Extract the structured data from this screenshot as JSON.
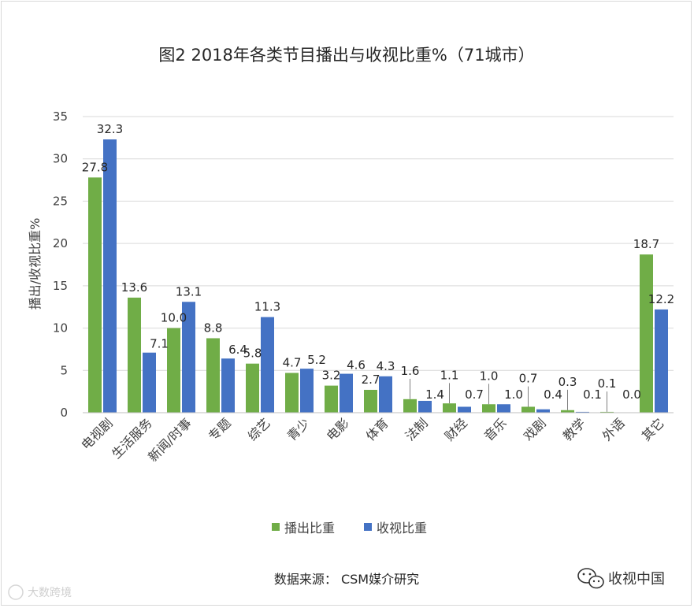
{
  "chart_data": {
    "type": "bar",
    "title": "图2  2018年各类节目播出与收视比重%（71城市）",
    "ylabel": "播出/收视比重%",
    "xlabel": "",
    "ylim": [
      0,
      35
    ],
    "yticks": [
      0,
      5,
      10,
      15,
      20,
      25,
      30,
      35
    ],
    "grid": true,
    "legend_position": "bottom",
    "categories": [
      "电视剧",
      "生活服务",
      "新闻/时事",
      "专题",
      "综艺",
      "青少",
      "电影",
      "体育",
      "法制",
      "财经",
      "音乐",
      "戏剧",
      "教学",
      "外语",
      "其它"
    ],
    "series": [
      {
        "name": "播出比重",
        "color": "#70ad47",
        "values": [
          27.8,
          13.6,
          10.0,
          8.8,
          5.8,
          4.7,
          3.2,
          2.7,
          1.6,
          1.1,
          1.0,
          0.7,
          0.3,
          0.1,
          18.7
        ],
        "labels": [
          "27.8",
          "13.6",
          "10.0",
          "8.8",
          "5.8",
          "4.7",
          "3.2",
          "2.7",
          "1.6",
          "1.1",
          "1.0",
          "0.7",
          "0.3",
          "0.1",
          "18.7"
        ]
      },
      {
        "name": "收视比重",
        "color": "#4472c4",
        "values": [
          32.3,
          7.1,
          13.1,
          6.4,
          11.3,
          5.2,
          4.6,
          4.3,
          1.4,
          0.7,
          1.0,
          0.4,
          0.1,
          0.0,
          12.2
        ],
        "labels": [
          "32.3",
          "7.1",
          "13.1",
          "6.4",
          "11.3",
          "5.2",
          "4.6",
          "4.3",
          "1.4",
          "0.7",
          "1.0",
          "0.4",
          "0.1",
          "0.0",
          "12.2"
        ]
      }
    ]
  },
  "source_text": "数据来源：  CSM媒介研究",
  "watermark": {
    "brand": "收视中国",
    "corner": "大数跨境"
  }
}
